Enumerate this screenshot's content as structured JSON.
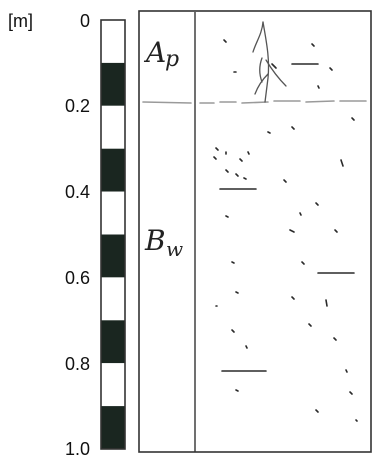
{
  "figure": {
    "unit_label": "[m]",
    "depth_ticks": [
      "0",
      "0.2",
      "0.4",
      "0.6",
      "0.8",
      "1.0"
    ],
    "depth_values": [
      0,
      0.2,
      0.4,
      0.6,
      0.8,
      1.0
    ],
    "scale_bar": {
      "segment_depth_m": 0.1,
      "colors": [
        "#ffffff",
        "#1a2620"
      ]
    },
    "profile": {
      "horizon_boundary_depth_m": 0.19,
      "horizons": [
        {
          "name": "Ap",
          "text_main": "A",
          "text_sub": "p"
        },
        {
          "name": "Bw",
          "text_main": "B",
          "text_sub": "w"
        }
      ]
    },
    "colors": {
      "ink": "#222222",
      "pencil": "#9a9a9a",
      "dark_segment": "#1a2620",
      "outline": "#333333"
    }
  }
}
